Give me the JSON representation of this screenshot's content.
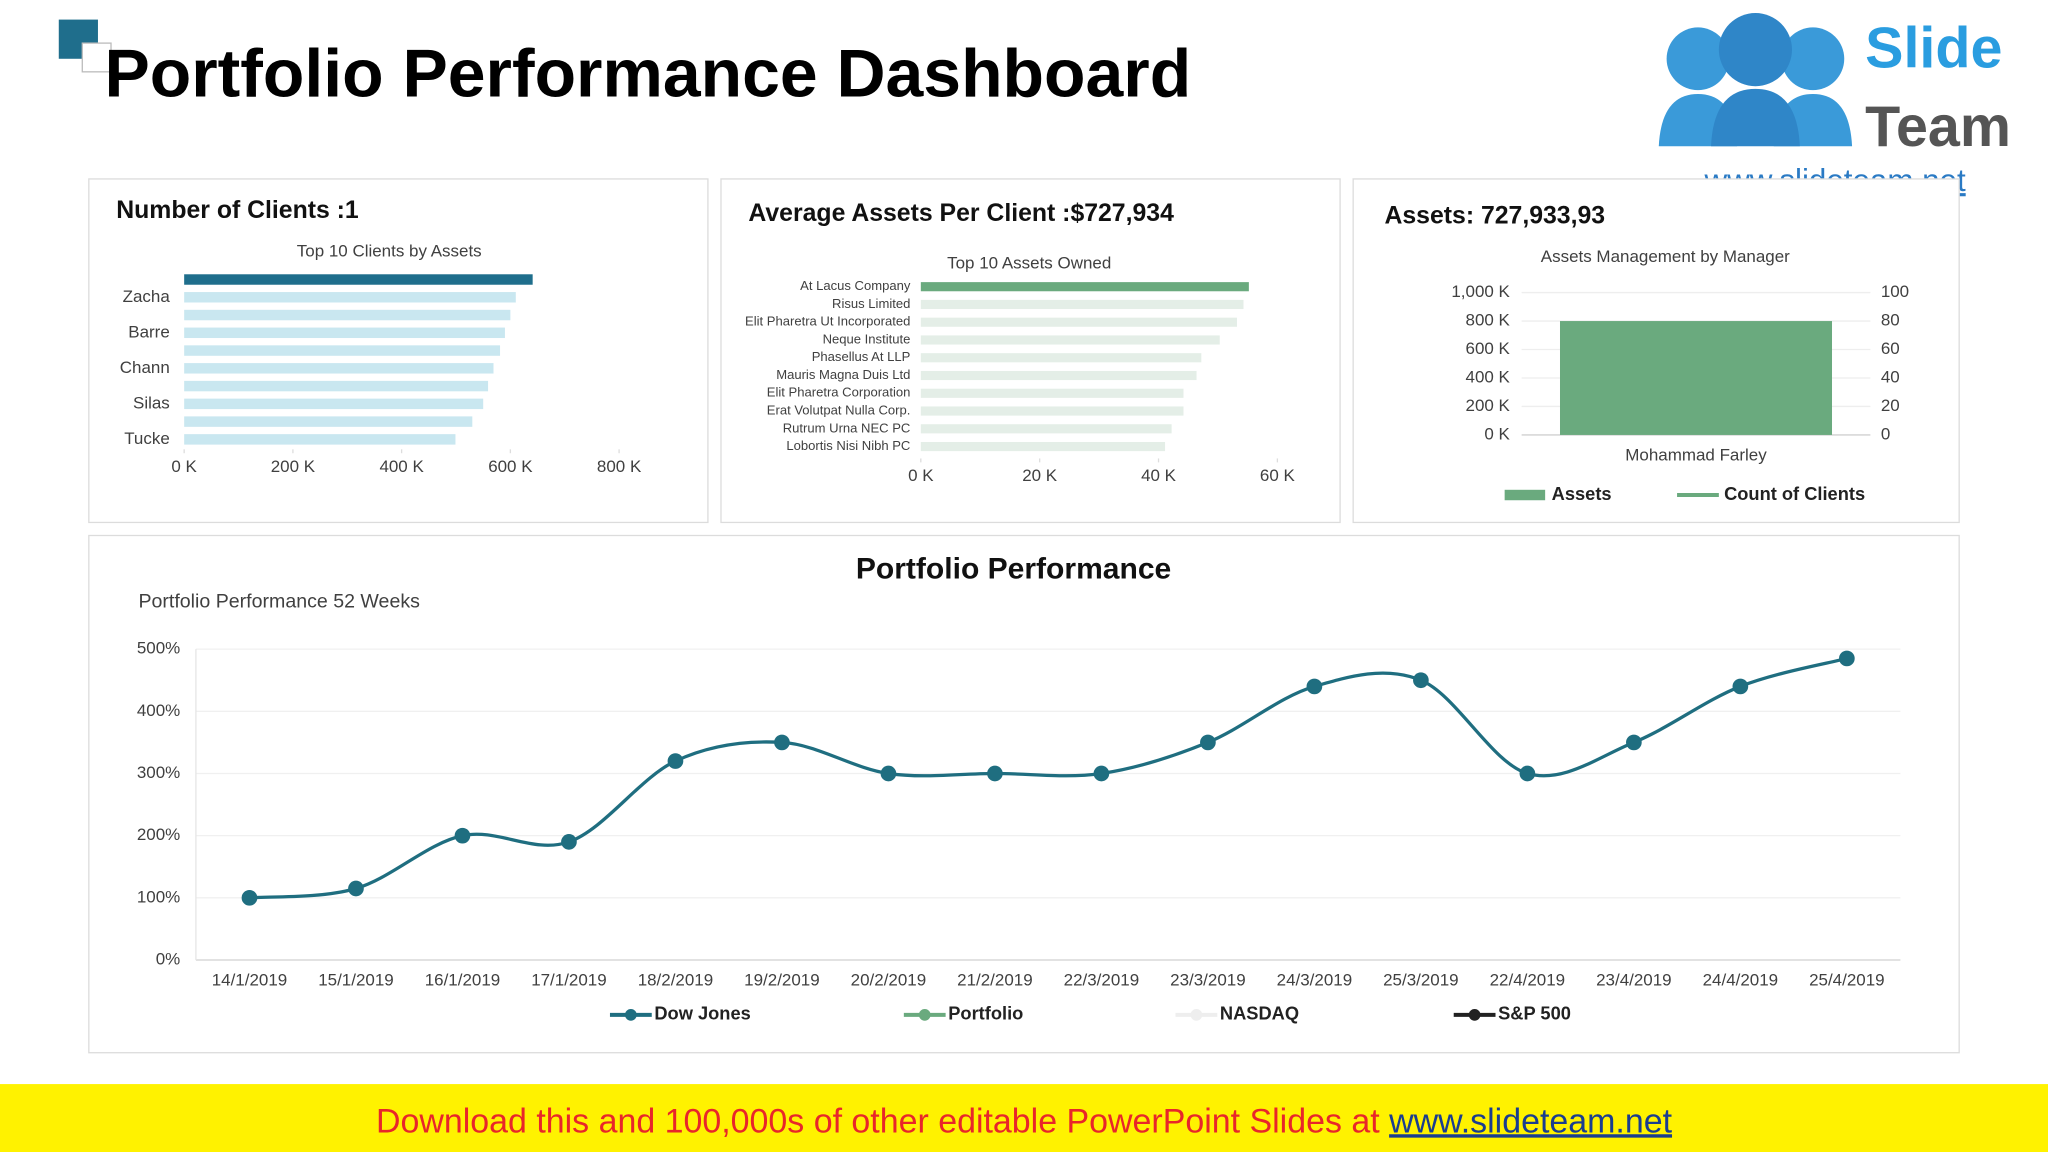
{
  "title": "Portfolio Performance Dashboard",
  "logo": {
    "word1": "Slide",
    "word2": "Team",
    "url": "www.slideteam.net"
  },
  "panels": [
    {
      "heading": "Number of Clients :1"
    },
    {
      "heading": "Average Assets Per Client :$727,934"
    },
    {
      "heading": "Assets: 727,933,93"
    },
    {
      "heading": "Portfolio Performance"
    }
  ],
  "footer": {
    "text": "Download this and 100,000s of other editable PowerPoint Slides at ",
    "link": "www.slideteam.net"
  },
  "chart_data": [
    {
      "type": "barh",
      "title": "Top 10 Clients by Assets",
      "categories": [
        null,
        "Zacha",
        null,
        "Barre",
        null,
        "Chann",
        null,
        "Silas",
        null,
        "Tucke"
      ],
      "values": [
        641,
        610,
        600,
        590,
        581,
        569,
        559,
        550,
        530,
        499
      ],
      "colors": [
        "#1f6e8c",
        "#c9e7f0",
        "#c9e7f0",
        "#c9e7f0",
        "#c9e7f0",
        "#c9e7f0",
        "#c9e7f0",
        "#c9e7f0",
        "#c9e7f0",
        "#c9e7f0"
      ],
      "xlim": [
        0,
        800
      ],
      "xticks": [
        {
          "value": 0,
          "label": "0 K"
        },
        {
          "value": 200,
          "label": "200 K"
        },
        {
          "value": 400,
          "label": "400 K"
        },
        {
          "value": 600,
          "label": "600 K"
        },
        {
          "value": 800,
          "label": "800 K"
        }
      ]
    },
    {
      "type": "barh",
      "title": "Top 10 Assets Owned",
      "categories": [
        "At Lacus Company",
        "Risus Limited",
        "Elit Pharetra Ut Incorporated",
        "Neque Institute",
        "Phasellus At LLP",
        "Mauris Magna Duis Ltd",
        "Elit Pharetra Corporation",
        "Erat Volutpat Nulla Corp.",
        "Rutrum Urna NEC PC",
        "Lobortis Nisi Nibh PC"
      ],
      "values": [
        55.2,
        54.3,
        53.2,
        50.3,
        47.2,
        46.4,
        44.2,
        44.2,
        42.2,
        41.1
      ],
      "colors": [
        "#6aaa7e",
        "#e4eee7",
        "#e4eee7",
        "#e4eee7",
        "#e4eee7",
        "#e4eee7",
        "#e4eee7",
        "#e4eee7",
        "#e4eee7",
        "#e4eee7"
      ],
      "xlim": [
        0,
        60
      ],
      "xticks": [
        {
          "value": 0,
          "label": "0 K"
        },
        {
          "value": 20,
          "label": "20 K"
        },
        {
          "value": 40,
          "label": "40 K"
        },
        {
          "value": 60,
          "label": "60 K"
        }
      ]
    },
    {
      "type": "combo",
      "title": "Assets Management by Manager",
      "categories": [
        "Mohammad Farley"
      ],
      "series": [
        {
          "name": "Assets",
          "mark": "bar",
          "color": "#6aaa7e",
          "values": [
            800
          ]
        },
        {
          "name": "Count of Clients",
          "mark": "line",
          "color": "#6aaa7e",
          "axis": "y2",
          "values": [
            1
          ]
        }
      ],
      "ylim": [
        0,
        1000
      ],
      "yticks": [
        {
          "value": 0,
          "label": "0 K"
        },
        {
          "value": 200,
          "label": "200 K"
        },
        {
          "value": 400,
          "label": "400 K"
        },
        {
          "value": 600,
          "label": "600 K"
        },
        {
          "value": 800,
          "label": "800 K"
        },
        {
          "value": 1000,
          "label": "1,000 K"
        }
      ],
      "y2lim": [
        0,
        100
      ],
      "y2ticks": [
        0,
        20,
        40,
        60,
        80,
        100
      ],
      "grid": true
    },
    {
      "type": "line",
      "title": "Portfolio Performance 52 Weeks",
      "categories": [
        "14/1/2019",
        "15/1/2019",
        "16/1/2019",
        "17/1/2019",
        "18/2/2019",
        "19/2/2019",
        "20/2/2019",
        "21/2/2019",
        "22/3/2019",
        "23/3/2019",
        "24/3/2019",
        "25/3/2019",
        "22/4/2019",
        "23/4/2019",
        "24/4/2019",
        "25/4/2019"
      ],
      "series": [
        {
          "name": "Dow Jones",
          "color": "#1f6e80",
          "values": [
            100,
            115,
            200,
            190,
            320,
            350,
            300,
            300,
            300,
            350,
            440,
            450,
            300,
            350,
            440,
            485
          ]
        },
        {
          "name": "Portfolio",
          "color": "#6aaa7e",
          "values": [
            null,
            null,
            null,
            null,
            null,
            null,
            null,
            null,
            null,
            null,
            null,
            null,
            null,
            null,
            null,
            null
          ]
        },
        {
          "name": "NASDAQ",
          "color": "#eeeeee",
          "values": [
            null,
            null,
            null,
            null,
            null,
            null,
            null,
            null,
            null,
            null,
            null,
            null,
            null,
            null,
            null,
            null
          ]
        },
        {
          "name": "S&P 500",
          "color": "#222222",
          "values": [
            null,
            null,
            null,
            null,
            null,
            null,
            null,
            null,
            null,
            null,
            null,
            null,
            null,
            null,
            null,
            null
          ]
        }
      ],
      "ylim": [
        0,
        500
      ],
      "yticks": [
        {
          "value": 0,
          "label": "0%"
        },
        {
          "value": 100,
          "label": "100%"
        },
        {
          "value": 200,
          "label": "200%"
        },
        {
          "value": 300,
          "label": "300%"
        },
        {
          "value": 400,
          "label": "400%"
        },
        {
          "value": 500,
          "label": "500%"
        }
      ],
      "grid": true,
      "smooth": true
    }
  ]
}
